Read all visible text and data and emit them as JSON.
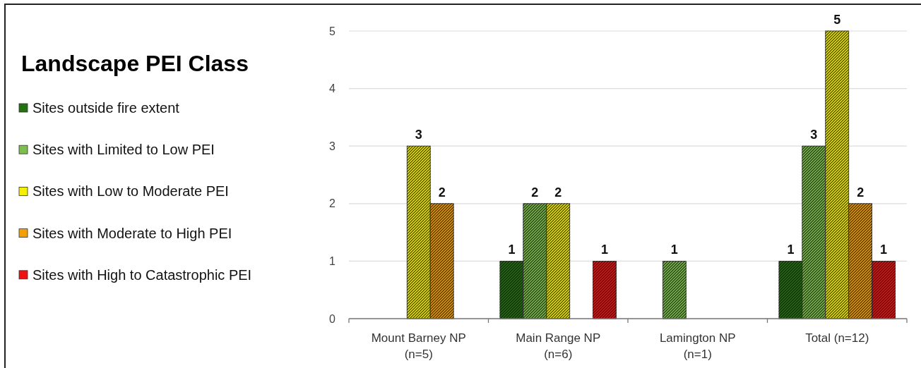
{
  "chart_data": {
    "type": "bar",
    "legend_title": "Landscape PEI Class",
    "categories": [
      "Mount Barney NP\n(n=5)",
      "Main Range NP\n(n=6)",
      "Lamington NP\n(n=1)",
      "Total (n=12)"
    ],
    "series": [
      {
        "name": "Sites outside fire extent",
        "color": "#23710f",
        "values": [
          null,
          1,
          null,
          1
        ]
      },
      {
        "name": "Sites with Limited to Low PEI",
        "color": "#7cbf4a",
        "values": [
          null,
          2,
          1,
          3
        ]
      },
      {
        "name": "Sites with Low to Moderate PEI",
        "color": "#f5f000",
        "values": [
          3,
          2,
          null,
          5
        ]
      },
      {
        "name": "Sites with Moderate to High PEI",
        "color": "#f5a000",
        "values": [
          2,
          null,
          null,
          2
        ]
      },
      {
        "name": "Sites with High to Catastrophic PEI",
        "color": "#ee1111",
        "values": [
          null,
          1,
          null,
          1
        ]
      }
    ],
    "ylim": [
      0,
      5
    ],
    "yticks": [
      0,
      1,
      2,
      3,
      4,
      5
    ],
    "grid": "y",
    "legend": "left",
    "data_labels": true
  }
}
